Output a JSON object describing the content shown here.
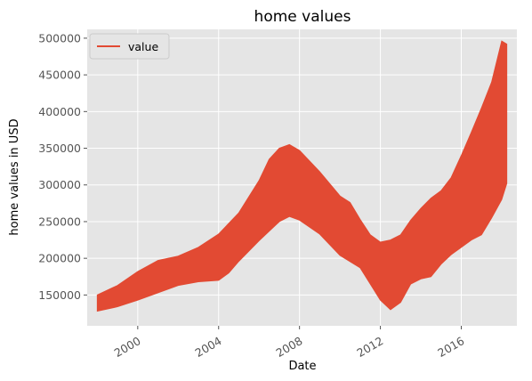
{
  "chart_data": {
    "type": "area",
    "title": "home values",
    "xlabel": "Date",
    "ylabel": "home values in USD",
    "grid": true,
    "legend_location": "top-left",
    "style": "ggplot",
    "colors": {
      "series": "#E24A33",
      "plot_bg": "#E5E5E5",
      "grid": "#FFFFFF"
    },
    "xlim": [
      "1997-07",
      "2018-10"
    ],
    "ylim": [
      108000,
      512000
    ],
    "x_ticks": [
      "2000",
      "2004",
      "2008",
      "2012",
      "2016"
    ],
    "y_ticks": [
      150000,
      200000,
      250000,
      300000,
      350000,
      400000,
      450000,
      500000
    ],
    "series": [
      {
        "name": "value",
        "upper": [
          {
            "x": "1998-01",
            "y": 150000
          },
          {
            "x": "1999-01",
            "y": 163000
          },
          {
            "x": "2000-01",
            "y": 182000
          },
          {
            "x": "2001-01",
            "y": 197000
          },
          {
            "x": "2002-01",
            "y": 203000
          },
          {
            "x": "2003-01",
            "y": 215000
          },
          {
            "x": "2004-01",
            "y": 233000
          },
          {
            "x": "2005-01",
            "y": 262000
          },
          {
            "x": "2006-01",
            "y": 306000
          },
          {
            "x": "2006-07",
            "y": 335000
          },
          {
            "x": "2007-01",
            "y": 350000
          },
          {
            "x": "2007-07",
            "y": 355000
          },
          {
            "x": "2008-01",
            "y": 347000
          },
          {
            "x": "2009-01",
            "y": 318000
          },
          {
            "x": "2010-01",
            "y": 285000
          },
          {
            "x": "2010-07",
            "y": 276000
          },
          {
            "x": "2011-01",
            "y": 253000
          },
          {
            "x": "2011-07",
            "y": 232000
          },
          {
            "x": "2012-01",
            "y": 222000
          },
          {
            "x": "2012-07",
            "y": 225000
          },
          {
            "x": "2013-01",
            "y": 232000
          },
          {
            "x": "2013-07",
            "y": 252000
          },
          {
            "x": "2014-01",
            "y": 268000
          },
          {
            "x": "2014-07",
            "y": 282000
          },
          {
            "x": "2015-01",
            "y": 292000
          },
          {
            "x": "2015-07",
            "y": 310000
          },
          {
            "x": "2016-01",
            "y": 340000
          },
          {
            "x": "2016-07",
            "y": 372000
          },
          {
            "x": "2017-01",
            "y": 405000
          },
          {
            "x": "2017-07",
            "y": 440000
          },
          {
            "x": "2018-01",
            "y": 496000
          },
          {
            "x": "2018-04",
            "y": 492000
          }
        ],
        "lower": [
          {
            "x": "1998-01",
            "y": 128000
          },
          {
            "x": "1999-01",
            "y": 134000
          },
          {
            "x": "2000-01",
            "y": 143000
          },
          {
            "x": "2001-01",
            "y": 153000
          },
          {
            "x": "2002-01",
            "y": 163000
          },
          {
            "x": "2003-01",
            "y": 168000
          },
          {
            "x": "2004-01",
            "y": 170000
          },
          {
            "x": "2004-07",
            "y": 180000
          },
          {
            "x": "2005-01",
            "y": 196000
          },
          {
            "x": "2006-01",
            "y": 224000
          },
          {
            "x": "2007-01",
            "y": 250000
          },
          {
            "x": "2007-07",
            "y": 257000
          },
          {
            "x": "2008-01",
            "y": 252000
          },
          {
            "x": "2009-01",
            "y": 233000
          },
          {
            "x": "2010-01",
            "y": 204000
          },
          {
            "x": "2011-01",
            "y": 187000
          },
          {
            "x": "2011-07",
            "y": 165000
          },
          {
            "x": "2012-01",
            "y": 143000
          },
          {
            "x": "2012-07",
            "y": 130000
          },
          {
            "x": "2013-01",
            "y": 140000
          },
          {
            "x": "2013-07",
            "y": 165000
          },
          {
            "x": "2014-01",
            "y": 172000
          },
          {
            "x": "2014-07",
            "y": 175000
          },
          {
            "x": "2015-01",
            "y": 192000
          },
          {
            "x": "2015-07",
            "y": 205000
          },
          {
            "x": "2016-01",
            "y": 215000
          },
          {
            "x": "2016-07",
            "y": 225000
          },
          {
            "x": "2017-01",
            "y": 232000
          },
          {
            "x": "2017-07",
            "y": 255000
          },
          {
            "x": "2018-01",
            "y": 280000
          },
          {
            "x": "2018-04",
            "y": 302000
          }
        ]
      }
    ]
  }
}
